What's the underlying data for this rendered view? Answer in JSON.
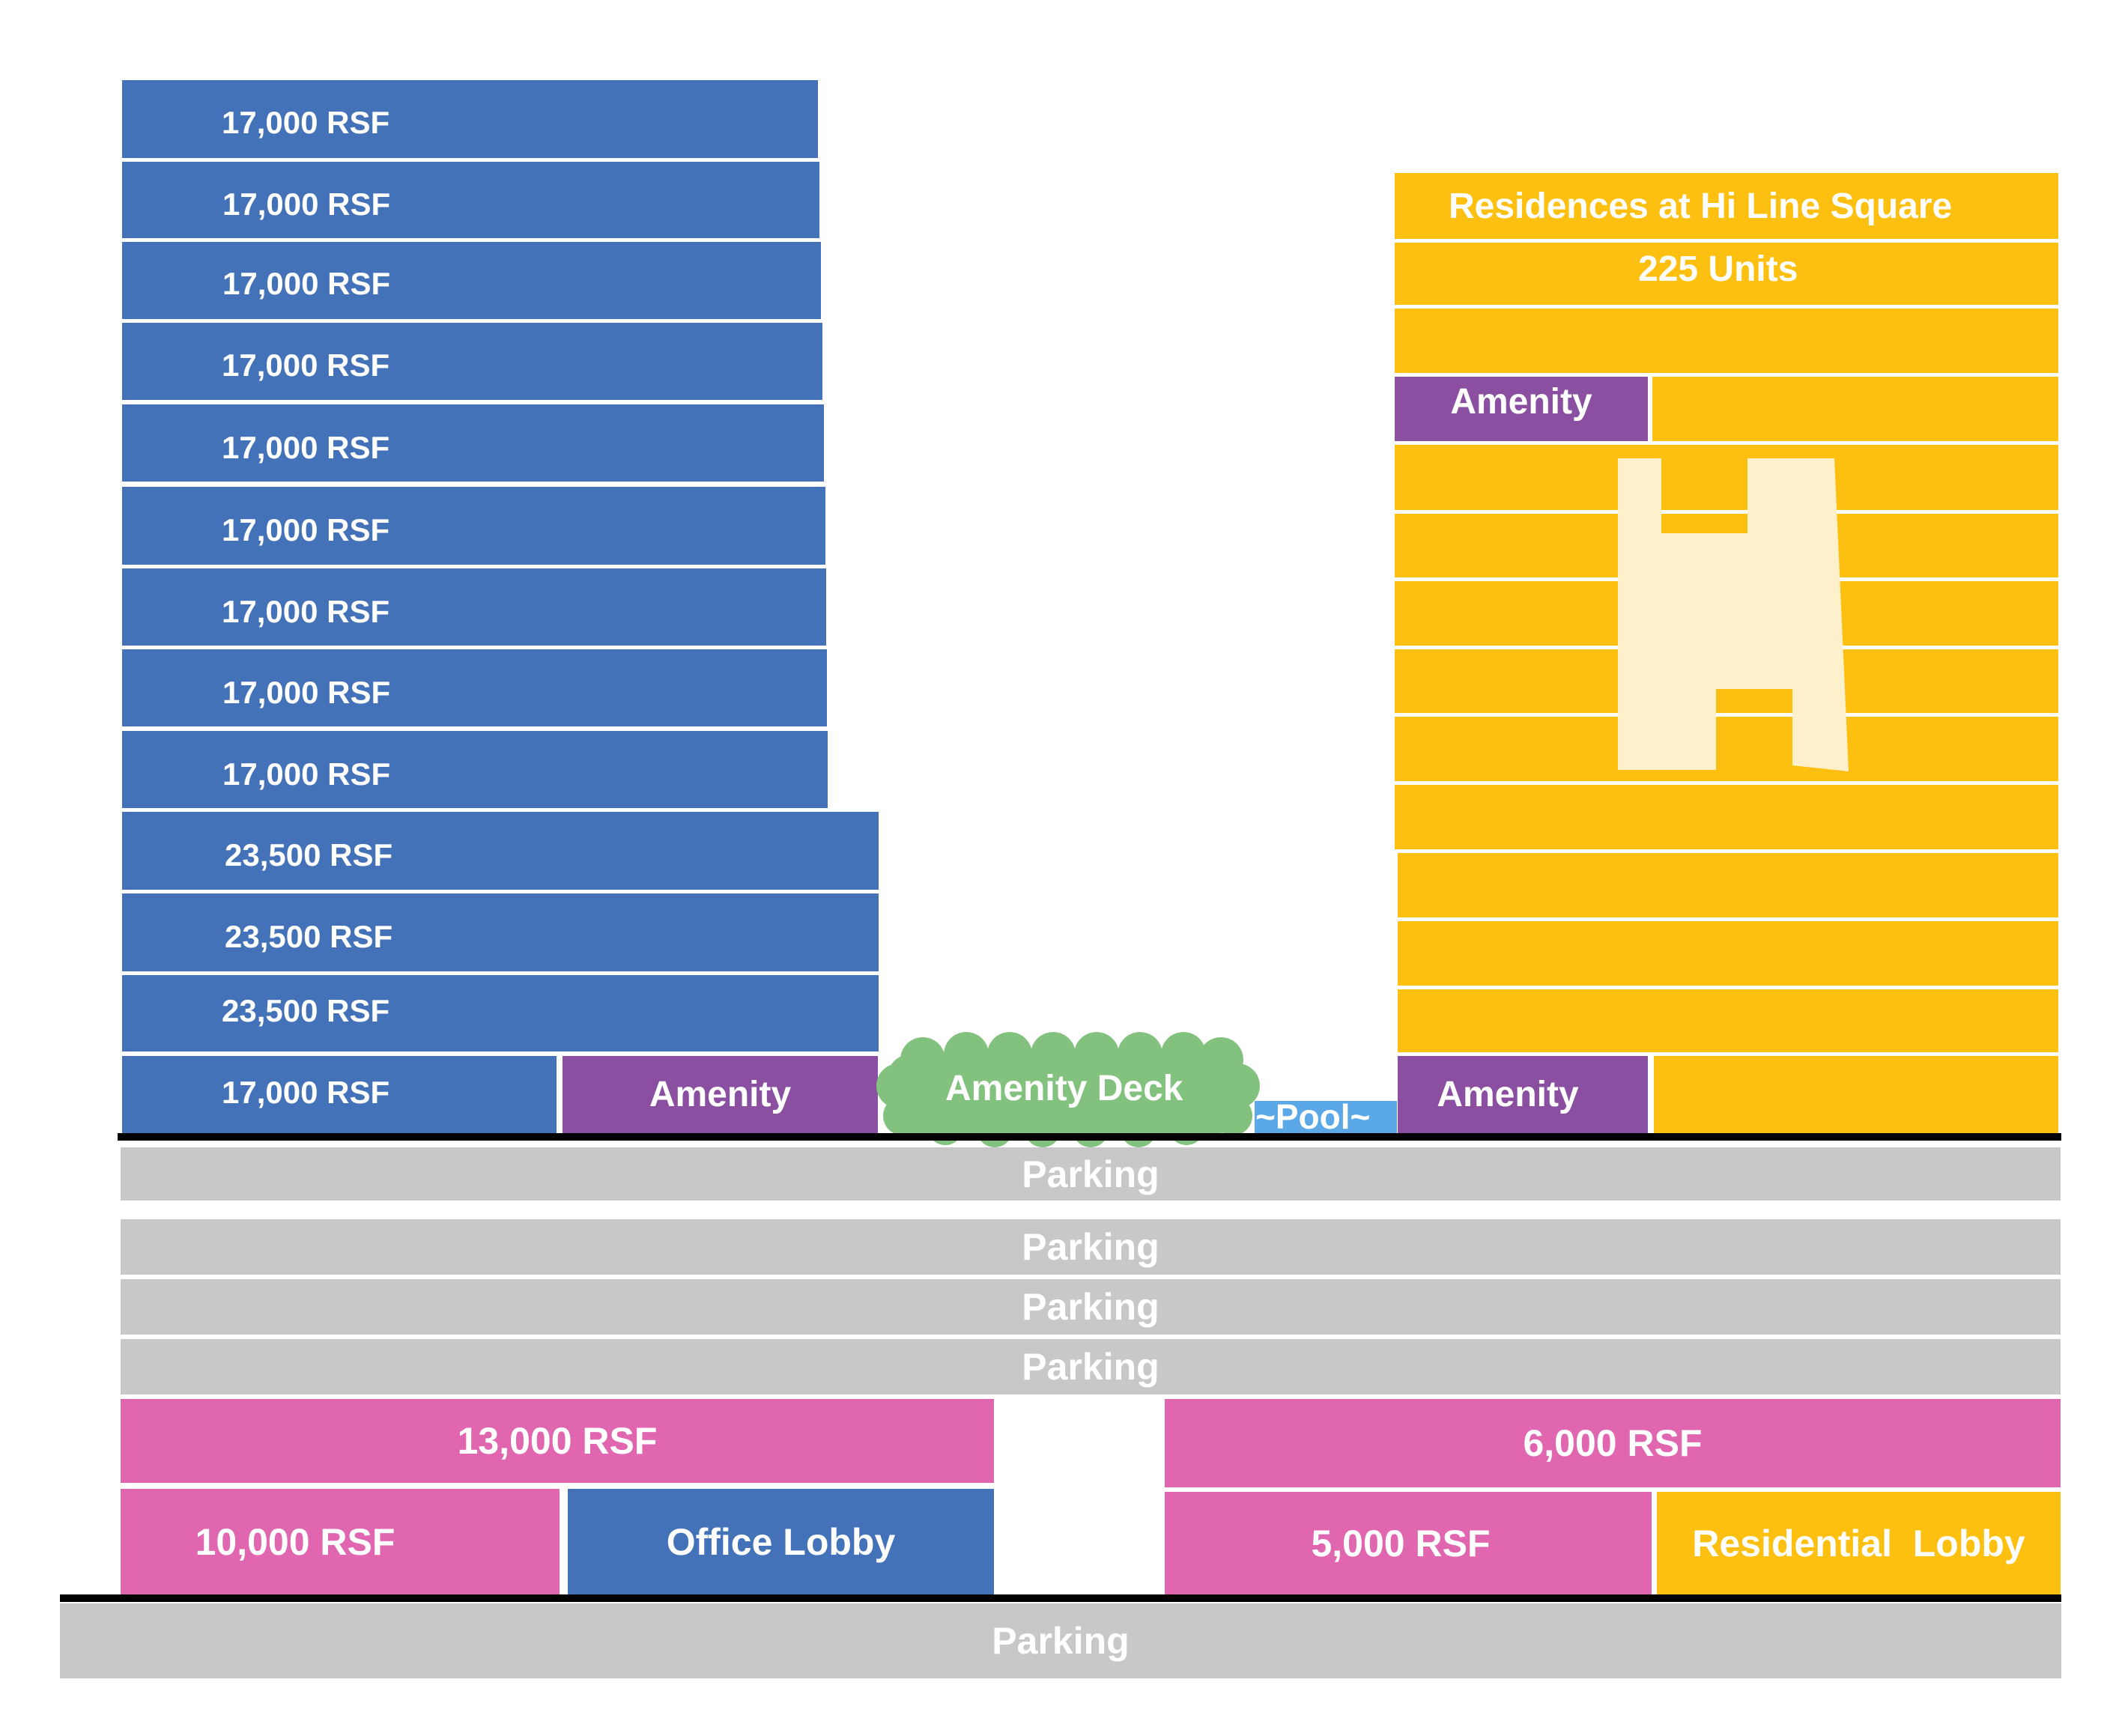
{
  "office_tower": {
    "floors": [
      "17,000 RSF",
      "17,000 RSF",
      "17,000 RSF",
      "17,000 RSF",
      "17,000 RSF",
      "17,000 RSF",
      "17,000 RSF",
      "17,000 RSF",
      "17,000 RSF",
      "23,500 RSF",
      "23,500 RSF",
      "23,500 RSF"
    ],
    "ground_floor_label": "17,000 RSF",
    "amenity_label": "Amenity"
  },
  "amenity_deck": {
    "label": "Amenity Deck"
  },
  "pool": {
    "label": "~Pool~"
  },
  "residential_tower": {
    "title": "Residences at Hi Line Square",
    "units": "225 Units",
    "upper_amenity_label": "Amenity",
    "lower_amenity_label": "Amenity"
  },
  "parking_levels": [
    "Parking",
    "Parking",
    "Parking",
    "Parking"
  ],
  "retail": {
    "upper_left": "13,000 RSF",
    "upper_right": "6,000 RSF",
    "lower_left": "10,000 RSF",
    "lower_mid_right": "5,000 RSF"
  },
  "lobbies": {
    "office": "Office Lobby",
    "residential": "Residential  Lobby"
  },
  "basement": {
    "label": "Parking"
  },
  "colors": {
    "office": "#4472b8",
    "residential": "#fdc010",
    "amenity": "#8a4fa0",
    "retail": "#e066b0",
    "parking": "#c8c8c8",
    "deck": "#82c27e",
    "pool": "#5aa8e8",
    "logo": "#fff0cc"
  },
  "logo_icon": "hi-line-h-logo-icon"
}
